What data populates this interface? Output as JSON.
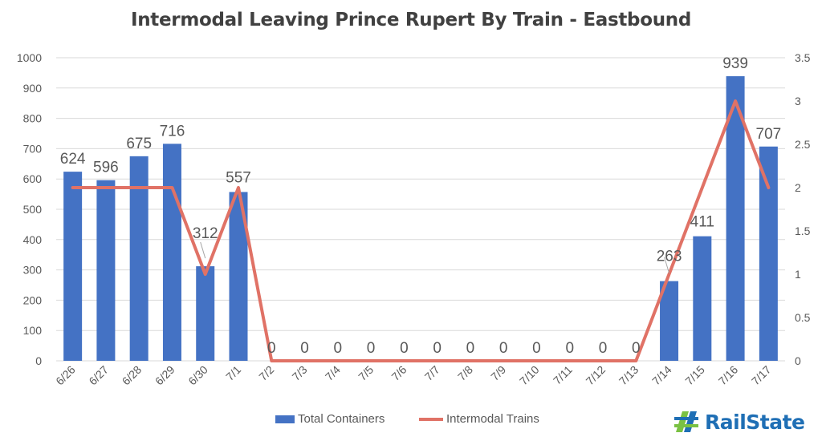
{
  "chart_data": {
    "type": "bar",
    "title": "Intermodal Leaving Prince Rupert By Train - Eastbound",
    "categories": [
      "6/26",
      "6/27",
      "6/28",
      "6/29",
      "6/30",
      "7/1",
      "7/2",
      "7/3",
      "7/4",
      "7/5",
      "7/6",
      "7/7",
      "7/8",
      "7/9",
      "7/10",
      "7/11",
      "7/12",
      "7/13",
      "7/14",
      "7/15",
      "7/16",
      "7/17"
    ],
    "series": [
      {
        "name": "Total Containers",
        "type": "bar",
        "axis": "left",
        "color": "#4472c4",
        "values": [
          624,
          596,
          675,
          716,
          312,
          557,
          0,
          0,
          0,
          0,
          0,
          0,
          0,
          0,
          0,
          0,
          0,
          0,
          263,
          411,
          939,
          707
        ],
        "data_labels": [
          "624",
          "596",
          "675",
          "716",
          "312",
          "557",
          "0",
          "0",
          "0",
          "0",
          "0",
          "0",
          "0",
          "0",
          "0",
          "0",
          "0",
          "0",
          "263",
          "411",
          "939",
          "707"
        ]
      },
      {
        "name": "Intermodal Trains",
        "type": "line",
        "axis": "right",
        "color": "#e07266",
        "values": [
          2,
          2,
          2,
          2,
          1,
          2,
          0,
          0,
          0,
          0,
          0,
          0,
          0,
          0,
          0,
          0,
          0,
          0,
          1,
          2,
          3,
          2
        ]
      }
    ],
    "y_left": {
      "min": 0,
      "max": 1000,
      "ticks": [
        "0",
        "100",
        "200",
        "300",
        "400",
        "500",
        "600",
        "700",
        "800",
        "900",
        "1000"
      ]
    },
    "y_right": {
      "min": 0,
      "max": 3.5,
      "ticks": [
        "0",
        "0.5",
        "1",
        "1.5",
        "2",
        "2.5",
        "3",
        "3.5"
      ]
    },
    "grid": true,
    "legend_position": "bottom"
  },
  "logo": {
    "text": "RailState",
    "color": "#1f6fb5",
    "accent": "#7ac143"
  }
}
